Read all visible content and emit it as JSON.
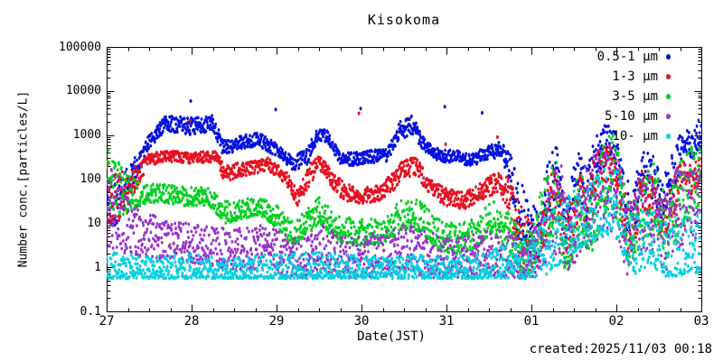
{
  "chart_data": {
    "type": "scatter",
    "title": "Kisokoma",
    "xlabel": "Date(JST)",
    "ylabel": "Number conc.[particles/L]",
    "created_text": "created:2025/11/03 00:18",
    "y_scale": "log",
    "ylim": [
      0.1,
      100000
    ],
    "y_ticks": [
      {
        "label": "100000",
        "value": 100000
      },
      {
        "label": "10000",
        "value": 10000
      },
      {
        "label": "1000",
        "value": 1000
      },
      {
        "label": "100",
        "value": 100
      },
      {
        "label": "10",
        "value": 10
      },
      {
        "label": "1",
        "value": 1
      },
      {
        "label": "0.1",
        "value": 0.1
      }
    ],
    "xlim_days": [
      0,
      7
    ],
    "x_minor_per_day": 4,
    "x_ticks": [
      {
        "label": "27",
        "day": 0
      },
      {
        "label": "28",
        "day": 1
      },
      {
        "label": "29",
        "day": 2
      },
      {
        "label": "30",
        "day": 3
      },
      {
        "label": "31",
        "day": 4
      },
      {
        "label": "01",
        "day": 5
      },
      {
        "label": "02",
        "day": 6
      },
      {
        "label": "03",
        "day": 7
      }
    ],
    "legend_position": "top-right",
    "grid": false,
    "series": [
      {
        "name": "0.5-1 μm",
        "color": "#0010e0",
        "seed": 11,
        "bias": 1.0,
        "envelope_keyframes": [
          [
            0.0,
            0.8,
            2.2
          ],
          [
            0.15,
            1.0,
            2.0
          ],
          [
            0.3,
            1.8,
            2.4
          ],
          [
            0.5,
            2.7,
            3.0
          ],
          [
            0.7,
            3.1,
            3.45
          ],
          [
            1.0,
            3.0,
            3.4
          ],
          [
            1.25,
            3.1,
            3.45
          ],
          [
            1.35,
            2.6,
            3.0
          ],
          [
            1.45,
            2.55,
            2.85
          ],
          [
            1.6,
            2.7,
            3.0
          ],
          [
            1.8,
            2.75,
            3.05
          ],
          [
            2.0,
            2.5,
            2.8
          ],
          [
            2.2,
            2.2,
            2.5
          ],
          [
            2.35,
            2.3,
            2.7
          ],
          [
            2.5,
            2.9,
            3.2
          ],
          [
            2.6,
            2.8,
            3.1
          ],
          [
            2.75,
            2.35,
            2.6
          ],
          [
            2.9,
            2.3,
            2.6
          ],
          [
            3.1,
            2.35,
            2.65
          ],
          [
            3.3,
            2.4,
            2.7
          ],
          [
            3.45,
            2.9,
            3.3
          ],
          [
            3.6,
            3.0,
            3.45
          ],
          [
            3.75,
            2.6,
            2.9
          ],
          [
            3.9,
            2.4,
            2.7
          ],
          [
            4.1,
            2.35,
            2.65
          ],
          [
            4.3,
            2.3,
            2.6
          ],
          [
            4.5,
            2.45,
            2.75
          ],
          [
            4.65,
            2.5,
            2.9
          ],
          [
            4.75,
            1.8,
            2.6
          ],
          [
            4.85,
            0.5,
            2.0
          ],
          [
            5.0,
            0.2,
            1.5
          ],
          [
            5.1,
            0.0,
            1.2
          ],
          [
            5.2,
            1.0,
            2.5
          ],
          [
            5.3,
            1.5,
            2.8
          ],
          [
            5.4,
            0.3,
            1.5
          ],
          [
            5.55,
            1.5,
            2.7
          ],
          [
            5.65,
            1.0,
            2.2
          ],
          [
            5.75,
            2.0,
            3.0
          ],
          [
            5.9,
            2.4,
            3.3
          ],
          [
            6.0,
            2.2,
            3.0
          ],
          [
            6.1,
            0.8,
            2.2
          ],
          [
            6.2,
            0.5,
            1.8
          ],
          [
            6.3,
            1.8,
            2.7
          ],
          [
            6.45,
            1.5,
            2.5
          ],
          [
            6.55,
            0.8,
            2.0
          ],
          [
            6.7,
            1.8,
            2.8
          ],
          [
            6.8,
            2.6,
            3.2
          ],
          [
            6.9,
            2.4,
            3.0
          ],
          [
            7.0,
            2.7,
            3.5
          ]
        ],
        "outliers": [
          [
            0.99,
            5900
          ],
          [
            1.99,
            3800
          ],
          [
            2.99,
            4000
          ],
          [
            3.98,
            4400
          ],
          [
            4.42,
            3200
          ]
        ]
      },
      {
        "name": "1-3 μm",
        "color": "#e81020",
        "seed": 22,
        "bias": 1.0,
        "envelope_keyframes": [
          [
            0.0,
            1.0,
            2.5
          ],
          [
            0.2,
            1.0,
            2.2
          ],
          [
            0.35,
            1.8,
            2.3
          ],
          [
            0.5,
            2.3,
            2.6
          ],
          [
            0.7,
            2.4,
            2.65
          ],
          [
            1.0,
            2.35,
            2.6
          ],
          [
            1.3,
            2.4,
            2.65
          ],
          [
            1.38,
            1.9,
            2.3
          ],
          [
            1.5,
            2.0,
            2.35
          ],
          [
            1.7,
            2.1,
            2.4
          ],
          [
            1.9,
            2.2,
            2.5
          ],
          [
            2.1,
            1.9,
            2.2
          ],
          [
            2.25,
            1.4,
            1.8
          ],
          [
            2.4,
            1.9,
            2.4
          ],
          [
            2.5,
            2.2,
            2.55
          ],
          [
            2.65,
            1.8,
            2.2
          ],
          [
            2.8,
            1.5,
            1.9
          ],
          [
            3.0,
            1.45,
            1.8
          ],
          [
            3.2,
            1.5,
            1.85
          ],
          [
            3.35,
            1.7,
            2.1
          ],
          [
            3.5,
            2.0,
            2.45
          ],
          [
            3.65,
            2.1,
            2.5
          ],
          [
            3.8,
            1.6,
            2.0
          ],
          [
            4.0,
            1.4,
            1.8
          ],
          [
            4.2,
            1.3,
            1.7
          ],
          [
            4.4,
            1.5,
            1.9
          ],
          [
            4.6,
            1.7,
            2.2
          ],
          [
            4.75,
            1.2,
            2.0
          ],
          [
            4.85,
            0.3,
            1.5
          ],
          [
            5.0,
            -0.2,
            1.0
          ],
          [
            5.1,
            0.0,
            1.0
          ],
          [
            5.2,
            0.8,
            2.2
          ],
          [
            5.3,
            1.2,
            2.4
          ],
          [
            5.4,
            0.0,
            1.2
          ],
          [
            5.55,
            1.0,
            2.2
          ],
          [
            5.65,
            0.8,
            1.8
          ],
          [
            5.75,
            1.5,
            2.6
          ],
          [
            5.9,
            1.8,
            2.8
          ],
          [
            6.0,
            1.8,
            2.6
          ],
          [
            6.1,
            0.5,
            1.8
          ],
          [
            6.2,
            0.3,
            1.5
          ],
          [
            6.3,
            1.3,
            2.3
          ],
          [
            6.45,
            1.0,
            2.0
          ],
          [
            6.55,
            0.5,
            1.5
          ],
          [
            6.7,
            1.3,
            2.2
          ],
          [
            6.8,
            1.9,
            2.5
          ],
          [
            6.9,
            1.6,
            2.3
          ],
          [
            7.0,
            1.9,
            2.6
          ]
        ],
        "outliers": [
          [
            0.98,
            2100
          ],
          [
            2.97,
            3100
          ],
          [
            3.99,
            620
          ],
          [
            4.6,
            900
          ]
        ]
      },
      {
        "name": "3-5 μm",
        "color": "#00d020",
        "seed": 33,
        "bias": 1.4,
        "envelope_keyframes": [
          [
            0.0,
            1.3,
            2.8
          ],
          [
            0.2,
            1.2,
            2.2
          ],
          [
            0.4,
            1.4,
            1.9
          ],
          [
            0.6,
            1.5,
            1.9
          ],
          [
            0.9,
            1.4,
            1.85
          ],
          [
            1.2,
            1.4,
            1.8
          ],
          [
            1.4,
            1.0,
            1.5
          ],
          [
            1.6,
            1.1,
            1.55
          ],
          [
            1.8,
            1.2,
            1.6
          ],
          [
            2.0,
            0.9,
            1.4
          ],
          [
            2.2,
            0.5,
            1.0
          ],
          [
            2.4,
            0.8,
            1.4
          ],
          [
            2.5,
            1.0,
            1.6
          ],
          [
            2.7,
            0.6,
            1.2
          ],
          [
            2.9,
            0.5,
            1.1
          ],
          [
            3.1,
            0.5,
            1.1
          ],
          [
            3.3,
            0.6,
            1.2
          ],
          [
            3.5,
            0.9,
            1.6
          ],
          [
            3.7,
            0.8,
            1.5
          ],
          [
            3.9,
            0.4,
            1.1
          ],
          [
            4.1,
            0.3,
            1.0
          ],
          [
            4.3,
            0.4,
            1.1
          ],
          [
            4.55,
            0.8,
            1.5
          ],
          [
            4.75,
            0.3,
            1.2
          ],
          [
            4.9,
            -0.2,
            0.8
          ],
          [
            5.0,
            -0.2,
            0.9
          ],
          [
            5.15,
            0.5,
            2.0
          ],
          [
            5.3,
            0.8,
            2.5
          ],
          [
            5.4,
            -0.2,
            1.0
          ],
          [
            5.55,
            0.5,
            2.2
          ],
          [
            5.7,
            0.3,
            1.8
          ],
          [
            5.85,
            1.0,
            2.8
          ],
          [
            5.95,
            1.2,
            3.1
          ],
          [
            6.05,
            0.8,
            2.5
          ],
          [
            6.15,
            0.0,
            1.2
          ],
          [
            6.3,
            0.5,
            2.0
          ],
          [
            6.45,
            0.8,
            2.4
          ],
          [
            6.6,
            0.2,
            1.5
          ],
          [
            6.75,
            0.8,
            2.4
          ],
          [
            6.9,
            1.2,
            2.8
          ],
          [
            7.0,
            1.5,
            3.1
          ]
        ],
        "outliers": []
      },
      {
        "name": "5-10 μm",
        "color": "#9933cc",
        "seed": 44,
        "bias": 1.1,
        "envelope_keyframes": [
          [
            0.0,
            0.5,
            2.3
          ],
          [
            0.2,
            0.3,
            2.0
          ],
          [
            0.4,
            0.2,
            1.3
          ],
          [
            0.7,
            0.2,
            1.05
          ],
          [
            1.0,
            0.1,
            1.0
          ],
          [
            1.3,
            0.0,
            0.9
          ],
          [
            1.6,
            -0.1,
            0.9
          ],
          [
            1.9,
            0.0,
            1.0
          ],
          [
            2.1,
            -0.2,
            0.75
          ],
          [
            2.3,
            -0.25,
            0.6
          ],
          [
            2.5,
            -0.1,
            1.0
          ],
          [
            2.7,
            -0.25,
            0.75
          ],
          [
            3.0,
            -0.25,
            0.7
          ],
          [
            3.3,
            -0.2,
            0.85
          ],
          [
            3.55,
            -0.1,
            1.0
          ],
          [
            3.8,
            -0.25,
            0.8
          ],
          [
            4.1,
            -0.25,
            0.65
          ],
          [
            4.4,
            -0.2,
            0.8
          ],
          [
            4.65,
            -0.25,
            0.9
          ],
          [
            4.9,
            -0.25,
            0.6
          ],
          [
            5.05,
            -0.2,
            0.9
          ],
          [
            5.2,
            0.2,
            2.0
          ],
          [
            5.35,
            0.3,
            2.4
          ],
          [
            5.45,
            -0.2,
            1.1
          ],
          [
            5.6,
            0.4,
            2.3
          ],
          [
            5.75,
            0.6,
            2.6
          ],
          [
            5.92,
            0.8,
            3.0
          ],
          [
            6.02,
            0.6,
            2.8
          ],
          [
            6.12,
            -0.2,
            1.3
          ],
          [
            6.25,
            0.2,
            2.0
          ],
          [
            6.4,
            0.4,
            2.2
          ],
          [
            6.55,
            -0.2,
            1.5
          ],
          [
            6.7,
            0.4,
            2.2
          ],
          [
            6.85,
            0.6,
            2.4
          ],
          [
            7.0,
            0.7,
            2.5
          ]
        ],
        "outliers": []
      },
      {
        "name": "10- μm",
        "color": "#00d0e0",
        "seed": 55,
        "bias": 1.6,
        "envelope_keyframes": [
          [
            0.0,
            -0.25,
            0.35
          ],
          [
            0.5,
            -0.25,
            0.25
          ],
          [
            1.0,
            -0.25,
            0.3
          ],
          [
            1.5,
            -0.25,
            0.25
          ],
          [
            2.0,
            -0.25,
            0.3
          ],
          [
            2.5,
            -0.25,
            0.35
          ],
          [
            3.0,
            -0.25,
            0.25
          ],
          [
            3.5,
            -0.25,
            0.3
          ],
          [
            4.0,
            -0.25,
            0.25
          ],
          [
            4.4,
            -0.25,
            0.3
          ],
          [
            4.7,
            -0.25,
            0.5
          ],
          [
            4.95,
            -0.25,
            0.7
          ],
          [
            5.15,
            -0.2,
            1.1
          ],
          [
            5.35,
            0.1,
            1.5
          ],
          [
            5.55,
            0.4,
            1.9
          ],
          [
            5.7,
            0.6,
            2.1
          ],
          [
            5.85,
            0.7,
            2.3
          ],
          [
            5.97,
            0.8,
            2.6
          ],
          [
            6.1,
            0.2,
            1.7
          ],
          [
            6.25,
            -0.2,
            1.2
          ],
          [
            6.4,
            0.1,
            1.4
          ],
          [
            6.55,
            -0.2,
            1.0
          ],
          [
            6.7,
            -0.2,
            1.2
          ],
          [
            6.85,
            -0.15,
            1.2
          ],
          [
            7.0,
            -0.1,
            1.5
          ]
        ],
        "outliers": []
      }
    ]
  }
}
